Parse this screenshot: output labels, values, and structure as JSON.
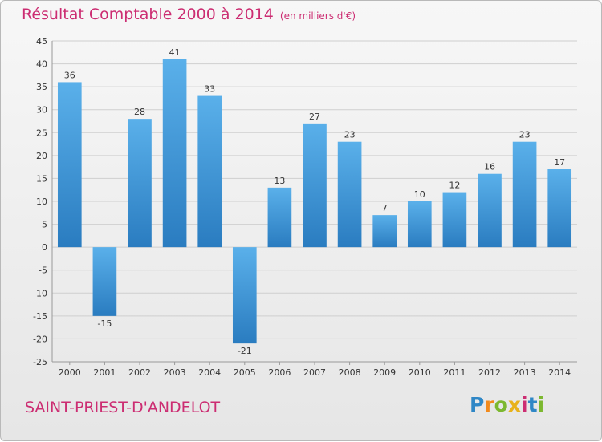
{
  "chart_data": {
    "type": "bar",
    "title": "Résultat Comptable 2000 à 2014",
    "unit_note": "(en milliers d'€)",
    "categories": [
      "2000",
      "2001",
      "2002",
      "2003",
      "2004",
      "2005",
      "2006",
      "2007",
      "2008",
      "2009",
      "2010",
      "2011",
      "2012",
      "2013",
      "2014"
    ],
    "values": [
      36,
      -15,
      28,
      41,
      33,
      -21,
      13,
      27,
      23,
      7,
      10,
      12,
      16,
      23,
      17
    ],
    "data_labels": [
      "36",
      "-15",
      "28",
      "41",
      "33",
      "-21",
      "13",
      "27",
      "23",
      "7",
      "10",
      "12",
      "16",
      "23",
      "17"
    ],
    "ylim": [
      -25,
      45
    ],
    "y_ticks": [
      45,
      40,
      35,
      30,
      25,
      20,
      15,
      10,
      5,
      0,
      -5,
      -10,
      -15,
      -20,
      -25
    ],
    "grid": true,
    "bar_color": "#3a8fd4",
    "xlabel": "",
    "ylabel": ""
  },
  "place_name": "SAINT-PRIEST-D'ANDELOT",
  "logo": {
    "letters": [
      "P",
      "r",
      "o",
      "x",
      "i",
      "t",
      "i"
    ],
    "colors": [
      "#2f87c6",
      "#f28a1c",
      "#7cb82f",
      "#e8b21b",
      "#cc2d72",
      "#2f87c6",
      "#7cb82f"
    ]
  },
  "colors": {
    "accent": "#cc2d72"
  }
}
